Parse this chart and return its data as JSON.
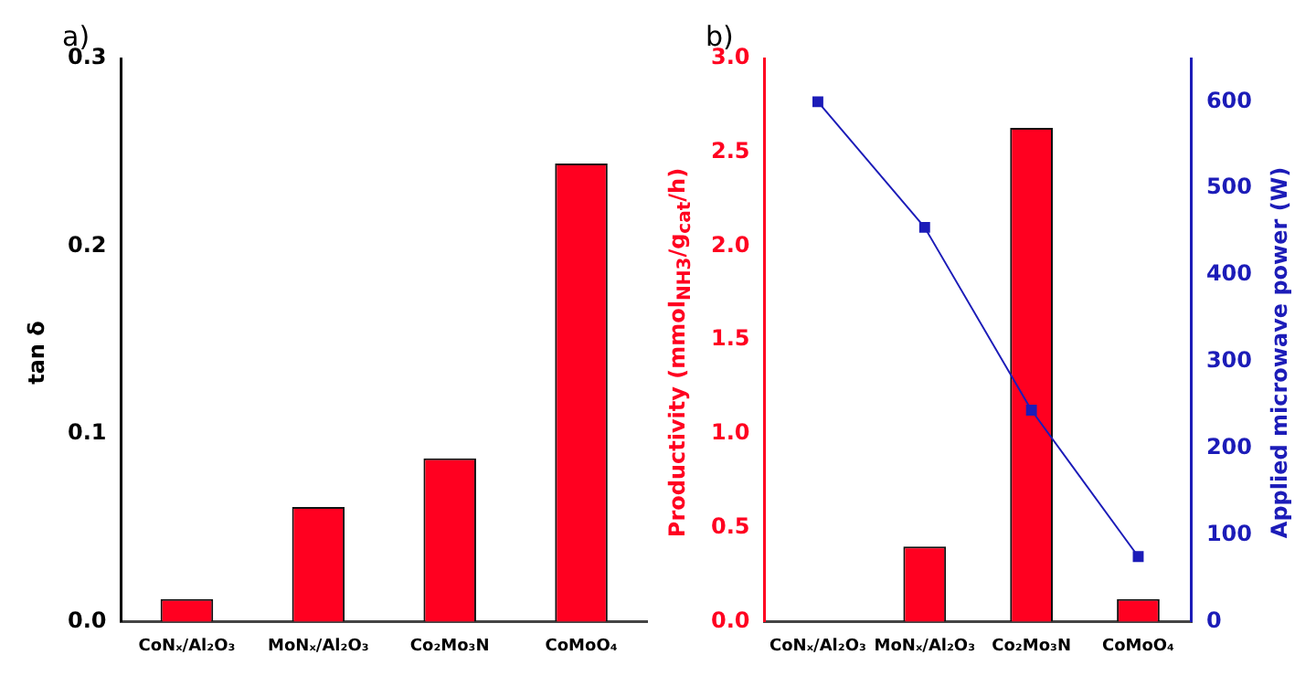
{
  "chart_data": [
    {
      "type": "bar",
      "title": "a)",
      "ylabel": "tan δ",
      "categories": [
        "CoNₓ/Al₂O₃",
        "MoNₓ/Al₂O₃",
        "Co₂Mo₃N",
        "CoMoO₄"
      ],
      "values": [
        0.012,
        0.061,
        0.087,
        0.244
      ],
      "color": "#ff0020",
      "ylim": [
        0,
        0.3
      ],
      "yticks": [
        {
          "value": 0,
          "label": "0.0"
        },
        0.1,
        0.2,
        0.3
      ],
      "grid": false,
      "legend": false
    },
    {
      "type": "bar",
      "title": "b)",
      "ylabel": "Productivity (mmol$_{NH3}$/g$_{cat}$/h)",
      "y2label": "Applied microwave power (W)",
      "categories": [
        "CoNₓ/Al₂O₃",
        "MoNₓ/Al₂O₃",
        "Co₂Mo₃N",
        "CoMoO₄"
      ],
      "series": [
        {
          "color": "#ff0020",
          "values": [
            null,
            0.4,
            2.63,
            0.12
          ]
        },
        {
          "type": "line",
          "axis": "y2",
          "color": "#1c1cb8",
          "values": [
            600,
            455,
            244,
            75
          ]
        }
      ],
      "ylim": [
        0,
        3
      ],
      "yticks": [
        {
          "value": 0,
          "label": "0.0"
        },
        0.5,
        {
          "value": 1,
          "label": "1.0"
        },
        1.5,
        {
          "value": 2,
          "label": "2.0"
        },
        2.5,
        {
          "value": 3,
          "label": "3.0"
        }
      ],
      "y2lim": [
        0,
        650
      ],
      "y2ticks": [
        0,
        100,
        200,
        300,
        400,
        500,
        600
      ],
      "grid": false,
      "legend": false,
      "marker": "square"
    }
  ]
}
